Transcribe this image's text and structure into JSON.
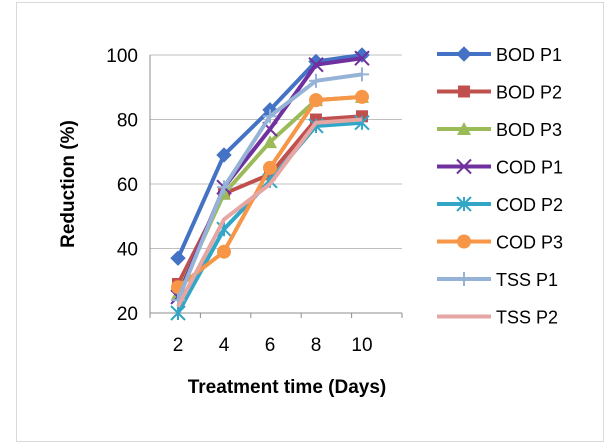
{
  "chart_data": {
    "type": "line",
    "title": "",
    "xlabel": "Treatment time (Days)",
    "ylabel": "Reduction (%)",
    "x": [
      2,
      4,
      6,
      8,
      10
    ],
    "ylim": [
      20,
      100
    ],
    "yticks": [
      20,
      40,
      60,
      80,
      100
    ],
    "grid": "horizontal",
    "legend": "right",
    "series": [
      {
        "name": "BOD P1",
        "color": "#4472C4",
        "marker": "diamond",
        "values": [
          37,
          69,
          83,
          98,
          100
        ]
      },
      {
        "name": "BOD P2",
        "color": "#C0504D",
        "marker": "square",
        "values": [
          29,
          57,
          63,
          80,
          81
        ]
      },
      {
        "name": "BOD P3",
        "color": "#9BBB59",
        "marker": "triangle",
        "values": [
          26,
          57,
          73,
          86,
          87
        ]
      },
      {
        "name": "COD P1",
        "color": "#7030A0",
        "marker": "x",
        "values": [
          25,
          59,
          77,
          97,
          99
        ]
      },
      {
        "name": "COD P2",
        "color": "#31A6C6",
        "marker": "star",
        "values": [
          20,
          46,
          61,
          78,
          79
        ]
      },
      {
        "name": "COD P3",
        "color": "#F79646",
        "marker": "circle",
        "values": [
          28,
          39,
          65,
          86,
          87
        ]
      },
      {
        "name": "TSS P1",
        "color": "#95B3D7",
        "marker": "plus",
        "values": [
          24,
          59,
          81,
          92,
          94
        ]
      },
      {
        "name": "TSS P2",
        "color": "#E6A6A4",
        "marker": "none",
        "values": [
          22,
          49,
          60,
          79,
          80
        ]
      }
    ]
  }
}
